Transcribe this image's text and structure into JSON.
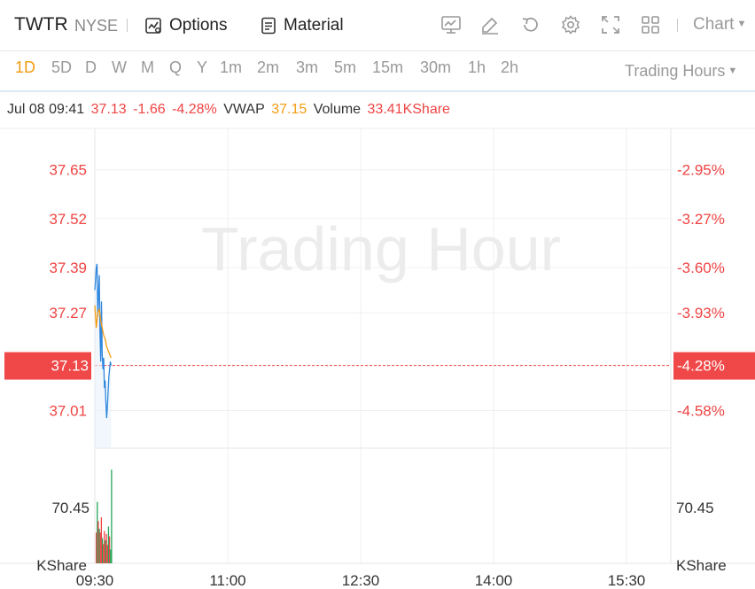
{
  "header": {
    "symbol": "TWTR",
    "exchange": "NYSE",
    "options_label": "Options",
    "material_label": "Material",
    "chart_selector": "Chart",
    "icons": [
      "trend-chart-icon",
      "draw-pencil-icon",
      "refresh-icon",
      "gear-icon",
      "fullscreen-icon",
      "layout-grid-icon"
    ]
  },
  "periods": {
    "items": [
      "1D",
      "5D",
      "D",
      "W",
      "M",
      "Q",
      "Y",
      "1m",
      "2m",
      "3m",
      "5m",
      "15m",
      "30m",
      "1h",
      "2h"
    ],
    "active": "1D",
    "session_selector": "Trading Hours"
  },
  "info": {
    "datetime": "Jul 08 09:41",
    "price": "37.13",
    "change": "-1.66",
    "change_pct": "-4.28%",
    "vwap_label": "VWAP",
    "vwap_value": "37.15",
    "volume_label": "Volume",
    "volume_value": "33.41KShare"
  },
  "watermark": "Trading Hour",
  "colors": {
    "up": "#26a65b",
    "down": "#ef4444",
    "price_line": "#2e86de",
    "vwap_line": "#f39c12",
    "active_period": "#f39c12",
    "label_bg": "#f04848"
  },
  "chart_data": {
    "type": "line",
    "title": "",
    "price_axis": {
      "ticks": [
        "37.65",
        "37.52",
        "37.39",
        "37.27",
        "37.13",
        "37.01"
      ],
      "ylim": [
        36.91,
        37.76
      ]
    },
    "pct_axis": {
      "ticks": [
        "-2.95%",
        "-3.27%",
        "-3.60%",
        "-3.93%",
        "-4.28%",
        "-4.58%"
      ]
    },
    "current": {
      "price": "37.13",
      "pct": "-4.28%"
    },
    "x_ticks": [
      "09:30",
      "11:00",
      "12:30",
      "14:00",
      "15:30"
    ],
    "x_range_minutes": [
      0,
      390
    ],
    "series": [
      {
        "name": "Price",
        "x": [
          0,
          1,
          1.5,
          2,
          2.5,
          3,
          3.5,
          4,
          4.5,
          5,
          5.5,
          6,
          6.5,
          7,
          7.5,
          8,
          8.5,
          9,
          9.5,
          10,
          10.5,
          11
        ],
        "values": [
          37.33,
          37.39,
          37.4,
          37.26,
          37.32,
          37.37,
          37.22,
          37.14,
          37.3,
          37.16,
          37.12,
          37.15,
          37.07,
          37.09,
          37.03,
          36.99,
          37.02,
          37.06,
          37.1,
          37.12,
          37.14,
          37.13
        ]
      },
      {
        "name": "VWAP",
        "x": [
          0,
          1,
          2,
          3,
          4,
          5,
          6,
          7,
          8,
          9,
          10,
          11
        ],
        "values": [
          37.29,
          37.23,
          37.27,
          37.28,
          37.25,
          37.23,
          37.21,
          37.2,
          37.18,
          37.17,
          37.16,
          37.15
        ]
      }
    ],
    "volume": {
      "tick": "70.45",
      "unit": "KShare",
      "ymax": 150,
      "bars": [
        {
          "x": 0,
          "v": 40,
          "up": false
        },
        {
          "x": 1,
          "v": 80,
          "up": true
        },
        {
          "x": 2,
          "v": 55,
          "up": false
        },
        {
          "x": 3,
          "v": 45,
          "up": true
        },
        {
          "x": 4,
          "v": 40,
          "up": false
        },
        {
          "x": 5,
          "v": 60,
          "up": false
        },
        {
          "x": 6,
          "v": 33,
          "up": true
        },
        {
          "x": 7,
          "v": 25,
          "up": false
        },
        {
          "x": 8,
          "v": 42,
          "up": false
        },
        {
          "x": 9,
          "v": 30,
          "up": true
        },
        {
          "x": 10,
          "v": 38,
          "up": false
        },
        {
          "x": 11,
          "v": 24,
          "up": false
        },
        {
          "x": 12,
          "v": 48,
          "up": true
        },
        {
          "x": 13,
          "v": 35,
          "up": false
        },
        {
          "x": 14,
          "v": 18,
          "up": true
        },
        {
          "x": 15,
          "v": 122,
          "up": true
        }
      ]
    }
  }
}
